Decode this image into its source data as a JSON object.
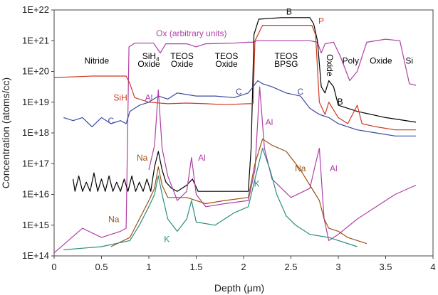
{
  "chart_data": {
    "type": "line",
    "xlabel": "Depth (μm)",
    "ylabel": "Concentration (atoms/cc)",
    "xlim": [
      0,
      4
    ],
    "ylim_log10": [
      14,
      22
    ],
    "yscale": "log",
    "x_ticks": [
      0,
      0.5,
      1,
      1.5,
      2,
      2.5,
      3,
      3.5,
      4
    ],
    "x_tick_labels": [
      "0",
      "0.5",
      "1",
      "1.5",
      "2",
      "2.5",
      "3",
      "3.5",
      "4"
    ],
    "y_ticks_log10": [
      14,
      15,
      16,
      17,
      18,
      19,
      20,
      21,
      22
    ],
    "y_tick_labels": [
      "1E+14",
      "1E+15",
      "1E+16",
      "1E+17",
      "1E+18",
      "1E+19",
      "1E+20",
      "1E+21",
      "1E+22"
    ],
    "layer_labels": [
      {
        "text": "Nitride",
        "x": 0.45,
        "y": 20.25,
        "color": "#000000"
      },
      {
        "text": "SiH",
        "sub": "4",
        "x": 1.02,
        "y": 20.4,
        "color": "#000000"
      },
      {
        "text": "Oxide",
        "x": 1.0,
        "y": 20.15,
        "color": "#000000"
      },
      {
        "text": "TEOS",
        "x": 1.35,
        "y": 20.4,
        "color": "#000000"
      },
      {
        "text": "Oxide",
        "x": 1.35,
        "y": 20.15,
        "color": "#000000"
      },
      {
        "text": "TEOS",
        "x": 1.82,
        "y": 20.4,
        "color": "#000000"
      },
      {
        "text": "Oxide",
        "x": 1.82,
        "y": 20.15,
        "color": "#000000"
      },
      {
        "text": "TEOS",
        "x": 2.45,
        "y": 20.4,
        "color": "#000000"
      },
      {
        "text": "BPSG",
        "x": 2.45,
        "y": 20.15,
        "color": "#000000"
      },
      {
        "text": "Oxide",
        "x": 2.88,
        "y": 20.2,
        "color": "#000000",
        "rotate": 90
      },
      {
        "text": "Poly",
        "x": 3.13,
        "y": 20.25,
        "color": "#000000"
      },
      {
        "text": "Oxide",
        "x": 3.45,
        "y": 20.25,
        "color": "#000000"
      },
      {
        "text": "Si",
        "x": 3.75,
        "y": 20.25,
        "color": "#000000"
      }
    ],
    "annotations": [
      {
        "text": "Ox (arbitrary units)",
        "x": 1.45,
        "y": 21.15,
        "color": "#b03fa6"
      },
      {
        "text": "B",
        "x": 2.48,
        "y": 21.85,
        "color": "#000000"
      },
      {
        "text": "P",
        "x": 2.82,
        "y": 21.55,
        "color": "#cc3a22"
      },
      {
        "text": "B",
        "x": 3.02,
        "y": 18.93,
        "color": "#000000"
      },
      {
        "text": "SiH",
        "x": 0.7,
        "y": 19.05,
        "color": "#cc3a22"
      },
      {
        "text": "Al",
        "x": 1.0,
        "y": 19.05,
        "color": "#b03fa6"
      },
      {
        "text": "C",
        "x": 1.95,
        "y": 19.25,
        "color": "#3b4aa0"
      },
      {
        "text": "C",
        "x": 2.6,
        "y": 19.25,
        "color": "#3b4aa0"
      },
      {
        "text": "C",
        "x": 0.6,
        "y": 18.3,
        "color": "#3b4aa0"
      },
      {
        "text": "Al",
        "x": 2.27,
        "y": 18.25,
        "color": "#b03fa6"
      },
      {
        "text": "Al",
        "x": 1.56,
        "y": 17.1,
        "color": "#b03fa6"
      },
      {
        "text": "Na",
        "x": 0.93,
        "y": 17.1,
        "color": "#9a5214"
      },
      {
        "text": "Na",
        "x": 2.6,
        "y": 16.75,
        "color": "#9a5214"
      },
      {
        "text": "Al",
        "x": 2.95,
        "y": 16.75,
        "color": "#b03fa6"
      },
      {
        "text": "K",
        "x": 2.14,
        "y": 16.25,
        "color": "#2a8d80"
      },
      {
        "text": "Na",
        "x": 0.63,
        "y": 15.1,
        "color": "#9a5214"
      },
      {
        "text": "K",
        "x": 1.19,
        "y": 14.45,
        "color": "#2a8d80"
      }
    ],
    "series": [
      {
        "name": "Ox",
        "color": "#b03fa6",
        "points": [
          [
            0,
            14.1
          ],
          [
            0.3,
            14.9
          ],
          [
            0.5,
            14.6
          ],
          [
            0.7,
            14.8
          ],
          [
            0.76,
            14.9
          ],
          [
            0.79,
            20.8
          ],
          [
            0.85,
            20.92
          ],
          [
            1.05,
            20.92
          ],
          [
            1.12,
            20.6
          ],
          [
            1.18,
            20.9
          ],
          [
            1.4,
            20.9
          ],
          [
            1.5,
            20.8
          ],
          [
            1.6,
            20.9
          ],
          [
            1.9,
            20.92
          ],
          [
            2.05,
            20.95
          ],
          [
            2.1,
            20.95
          ],
          [
            2.14,
            21.0
          ],
          [
            2.7,
            21.0
          ],
          [
            2.78,
            20.95
          ],
          [
            2.82,
            20.6
          ],
          [
            2.86,
            20.9
          ],
          [
            2.95,
            20.95
          ],
          [
            3.02,
            20.5
          ],
          [
            3.12,
            19.7
          ],
          [
            3.2,
            20.0
          ],
          [
            3.3,
            20.95
          ],
          [
            3.5,
            21.05
          ],
          [
            3.65,
            21.0
          ],
          [
            3.7,
            20.3
          ],
          [
            3.75,
            19.6
          ],
          [
            3.82,
            19.55
          ]
        ]
      },
      {
        "name": "B",
        "color": "#000000",
        "points": [
          [
            0.2,
            16.5
          ],
          [
            0.22,
            16.1
          ],
          [
            0.26,
            16.6
          ],
          [
            0.3,
            16.1
          ],
          [
            0.34,
            16.4
          ],
          [
            0.38,
            16.1
          ],
          [
            0.42,
            16.7
          ],
          [
            0.46,
            16.1
          ],
          [
            0.5,
            16.5
          ],
          [
            0.54,
            16.1
          ],
          [
            0.58,
            16.6
          ],
          [
            0.62,
            16.1
          ],
          [
            0.66,
            16.4
          ],
          [
            0.7,
            16.1
          ],
          [
            0.74,
            16.5
          ],
          [
            0.78,
            16.1
          ],
          [
            0.82,
            16.6
          ],
          [
            0.86,
            16.1
          ],
          [
            0.9,
            16.4
          ],
          [
            0.94,
            16.1
          ],
          [
            0.98,
            16.5
          ],
          [
            1.02,
            16.1
          ],
          [
            1.06,
            16.9
          ],
          [
            1.1,
            17.4
          ],
          [
            1.14,
            16.8
          ],
          [
            1.18,
            16.4
          ],
          [
            1.24,
            16.2
          ],
          [
            1.3,
            16.1
          ],
          [
            1.4,
            16.3
          ],
          [
            1.46,
            16.5
          ],
          [
            1.52,
            16.1
          ],
          [
            1.6,
            16.1
          ],
          [
            2.05,
            16.1
          ],
          [
            2.08,
            17.5
          ],
          [
            2.11,
            21.2
          ],
          [
            2.16,
            21.7
          ],
          [
            2.4,
            21.75
          ],
          [
            2.7,
            21.75
          ],
          [
            2.74,
            21.55
          ],
          [
            2.78,
            21.0
          ],
          [
            2.82,
            19.5
          ],
          [
            2.86,
            19.3
          ],
          [
            2.9,
            19.7
          ],
          [
            2.95,
            19.5
          ],
          [
            3.0,
            18.9
          ],
          [
            3.2,
            18.7
          ],
          [
            3.5,
            18.5
          ],
          [
            3.82,
            18.35
          ]
        ]
      },
      {
        "name": "P",
        "color": "#cc3a22",
        "points": [
          [
            0,
            19.8
          ],
          [
            0.4,
            19.85
          ],
          [
            0.76,
            19.85
          ],
          [
            0.8,
            19.6
          ],
          [
            0.85,
            19.15
          ],
          [
            1.0,
            19.0
          ],
          [
            1.2,
            18.95
          ],
          [
            1.4,
            18.97
          ],
          [
            1.6,
            18.95
          ],
          [
            1.8,
            18.92
          ],
          [
            2.05,
            18.95
          ],
          [
            2.1,
            18.95
          ],
          [
            2.12,
            21.0
          ],
          [
            2.2,
            21.5
          ],
          [
            2.5,
            21.5
          ],
          [
            2.72,
            21.5
          ],
          [
            2.76,
            21.2
          ],
          [
            2.8,
            19.0
          ],
          [
            2.86,
            18.6
          ],
          [
            2.9,
            19.0
          ],
          [
            3.0,
            18.5
          ],
          [
            3.1,
            18.3
          ],
          [
            3.2,
            18.9
          ],
          [
            3.25,
            18.3
          ],
          [
            3.4,
            18.2
          ],
          [
            3.6,
            18.1
          ],
          [
            3.82,
            18.1
          ]
        ]
      },
      {
        "name": "C",
        "color": "#3b4aa0",
        "points": [
          [
            0.1,
            18.5
          ],
          [
            0.2,
            18.4
          ],
          [
            0.3,
            18.5
          ],
          [
            0.4,
            18.2
          ],
          [
            0.5,
            18.5
          ],
          [
            0.6,
            18.3
          ],
          [
            0.7,
            18.4
          ],
          [
            0.76,
            18.3
          ],
          [
            0.8,
            18.7
          ],
          [
            0.9,
            18.9
          ],
          [
            1.0,
            19.0
          ],
          [
            1.1,
            19.2
          ],
          [
            1.2,
            19.1
          ],
          [
            1.3,
            19.3
          ],
          [
            1.5,
            19.2
          ],
          [
            1.7,
            19.2
          ],
          [
            1.9,
            19.15
          ],
          [
            2.05,
            19.3
          ],
          [
            2.15,
            19.7
          ],
          [
            2.2,
            19.6
          ],
          [
            2.3,
            19.5
          ],
          [
            2.45,
            19.3
          ],
          [
            2.6,
            19.2
          ],
          [
            2.7,
            18.8
          ],
          [
            2.8,
            18.6
          ],
          [
            2.9,
            18.5
          ],
          [
            3.0,
            18.3
          ],
          [
            3.2,
            18.1
          ],
          [
            3.4,
            18.0
          ],
          [
            3.6,
            17.9
          ],
          [
            3.82,
            17.9
          ]
        ]
      },
      {
        "name": "Al",
        "color": "#b03fa6",
        "points": [
          [
            1.0,
            16.8
          ],
          [
            1.06,
            17.6
          ],
          [
            1.1,
            19.4
          ],
          [
            1.14,
            17.5
          ],
          [
            1.2,
            16.6
          ],
          [
            1.3,
            15.8
          ],
          [
            1.4,
            16.1
          ],
          [
            1.45,
            17.2
          ],
          [
            1.5,
            16.0
          ],
          [
            1.6,
            15.6
          ],
          [
            1.8,
            15.7
          ],
          [
            2.05,
            15.8
          ],
          [
            2.12,
            16.8
          ],
          [
            2.17,
            19.5
          ],
          [
            2.22,
            17.5
          ],
          [
            2.3,
            16.5
          ],
          [
            2.5,
            15.9
          ],
          [
            2.7,
            16.2
          ],
          [
            2.76,
            17.0
          ],
          [
            2.8,
            17.5
          ],
          [
            2.85,
            15.2
          ],
          [
            2.9,
            14.5
          ],
          [
            3.0,
            14.7
          ],
          [
            3.2,
            15.2
          ],
          [
            3.4,
            15.6
          ],
          [
            3.6,
            16.0
          ],
          [
            3.82,
            16.3
          ]
        ]
      },
      {
        "name": "Na",
        "color": "#9a5214",
        "points": [
          [
            0.6,
            14.3
          ],
          [
            0.8,
            14.6
          ],
          [
            0.9,
            15.2
          ],
          [
            1.0,
            15.8
          ],
          [
            1.06,
            16.2
          ],
          [
            1.1,
            16.9
          ],
          [
            1.14,
            16.3
          ],
          [
            1.2,
            15.9
          ],
          [
            1.4,
            15.9
          ],
          [
            1.6,
            15.7
          ],
          [
            1.8,
            15.8
          ],
          [
            2.05,
            15.9
          ],
          [
            2.12,
            17.0
          ],
          [
            2.2,
            17.8
          ],
          [
            2.3,
            17.6
          ],
          [
            2.45,
            17.4
          ],
          [
            2.6,
            16.8
          ],
          [
            2.7,
            16.3
          ],
          [
            2.76,
            16.0
          ],
          [
            2.8,
            15.8
          ],
          [
            2.85,
            15.2
          ],
          [
            2.9,
            14.9
          ],
          [
            3.0,
            14.8
          ],
          [
            3.1,
            14.6
          ],
          [
            3.3,
            14.4
          ]
        ]
      },
      {
        "name": "K",
        "color": "#2a8d80",
        "points": [
          [
            0.1,
            14.2
          ],
          [
            0.5,
            14.3
          ],
          [
            0.8,
            14.5
          ],
          [
            0.9,
            15.0
          ],
          [
            1.0,
            15.6
          ],
          [
            1.06,
            16.0
          ],
          [
            1.1,
            16.6
          ],
          [
            1.14,
            16.0
          ],
          [
            1.2,
            15.2
          ],
          [
            1.3,
            14.8
          ],
          [
            1.4,
            15.2
          ],
          [
            1.45,
            15.8
          ],
          [
            1.5,
            15.1
          ],
          [
            1.7,
            15.0
          ],
          [
            1.9,
            15.4
          ],
          [
            2.05,
            15.6
          ],
          [
            2.12,
            16.5
          ],
          [
            2.2,
            17.5
          ],
          [
            2.28,
            16.8
          ],
          [
            2.35,
            16.0
          ],
          [
            2.45,
            15.3
          ],
          [
            2.55,
            15.0
          ],
          [
            2.7,
            14.7
          ],
          [
            2.9,
            14.6
          ],
          [
            3.2,
            14.3
          ]
        ]
      }
    ]
  }
}
